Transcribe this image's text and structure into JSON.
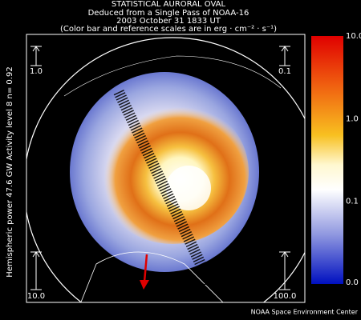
{
  "header": {
    "title": "STATISTICAL AURORAL OVAL",
    "line2": "Deduced from a Single Pass of NOAA-16",
    "line3": "2003 October 31 1833 UT",
    "line4": "(Color bar and reference scales are in erg · cm⁻² · s⁻¹)"
  },
  "side_text": "Hemispheric power 47.6 GW   Activity level 8   n= 0.92",
  "reference_scales": {
    "top_left": "1.0",
    "top_right": "0.1",
    "bottom_left": "10.0",
    "bottom_right": "100.0"
  },
  "color_bar": {
    "ticks": [
      "10.0",
      "1.0",
      "0.1",
      "0.0"
    ]
  },
  "credit": "NOAA Space Environment Center"
}
